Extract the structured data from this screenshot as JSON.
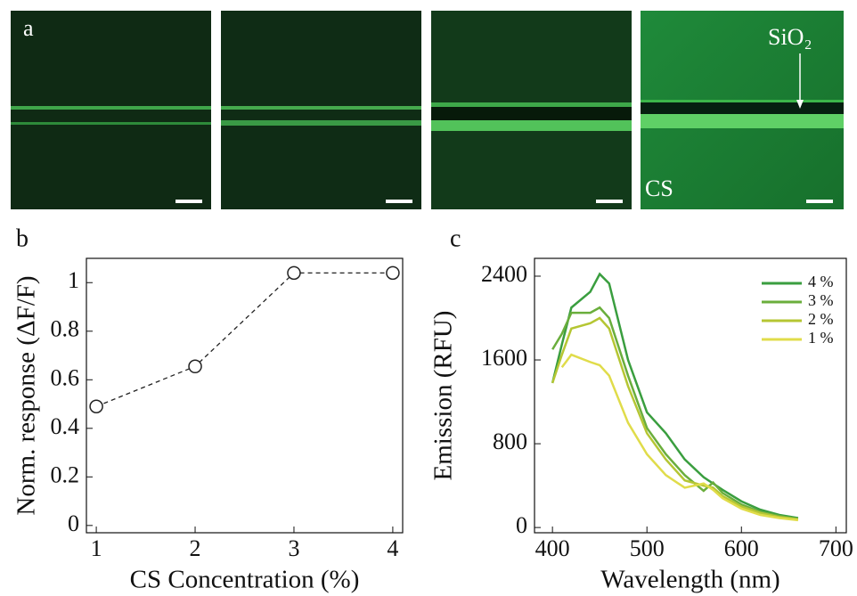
{
  "panel_a": {
    "label": "a",
    "annotations": [
      "SiO₂",
      "CS"
    ]
  },
  "chart_data": [
    {
      "type": "line",
      "panel_label": "b",
      "x_label": "CS Concentration (%)",
      "y_label": "Norm. response (ΔF/F)",
      "x": [
        1,
        2,
        3,
        4
      ],
      "values": [
        0.49,
        0.655,
        1.04,
        1.04
      ],
      "color": "#222222",
      "marker": "open-circle",
      "linestyle": "dashed",
      "xlim": [
        0.9,
        4.1
      ],
      "ylim": [
        -0.03,
        1.1
      ],
      "xticks": [
        1,
        2,
        3,
        4
      ],
      "yticks": [
        0,
        0.2,
        0.4,
        0.6,
        0.8,
        1
      ]
    },
    {
      "type": "line",
      "panel_label": "c",
      "x_label": "Wavelength (nm)",
      "y_label": "Emission (RFU)",
      "x": [
        400,
        410,
        420,
        440,
        450,
        460,
        480,
        500,
        520,
        540,
        560,
        570,
        580,
        600,
        620,
        640,
        660
      ],
      "series": [
        {
          "name": "4 %",
          "color": "#3a9e3f",
          "values": [
            1380,
            1750,
            2100,
            2250,
            2420,
            2330,
            1600,
            1100,
            900,
            650,
            480,
            420,
            360,
            250,
            170,
            120,
            90
          ]
        },
        {
          "name": "3 %",
          "color": "#6aae3c",
          "values": [
            1700,
            1850,
            2050,
            2050,
            2100,
            2000,
            1450,
            950,
            700,
            500,
            350,
            430,
            330,
            220,
            150,
            110,
            80
          ]
        },
        {
          "name": "2 %",
          "color": "#b5c633",
          "values": [
            1380,
            1650,
            1900,
            1950,
            2000,
            1900,
            1350,
            900,
            650,
            450,
            400,
            380,
            300,
            200,
            140,
            100,
            80
          ]
        },
        {
          "name": "1 %",
          "color": "#e0dc4a",
          "values": [
            null,
            1530,
            1650,
            1580,
            1550,
            1450,
            1000,
            700,
            500,
            380,
            420,
            360,
            280,
            180,
            120,
            90,
            70
          ]
        }
      ],
      "legend": "upper right",
      "xlim": [
        381,
        711
      ],
      "ylim": [
        -50,
        2570
      ],
      "xticks": [
        400,
        500,
        600,
        700
      ],
      "yticks": [
        0,
        800,
        1600,
        2400
      ]
    }
  ]
}
